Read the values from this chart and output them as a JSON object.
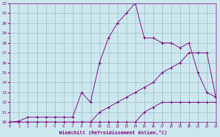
{
  "xlabel": "Windchill (Refroidissement éolien,°C)",
  "bg_color": "#cce8ee",
  "line_color": "#800080",
  "grid_color": "#99b8c8",
  "xmin": 0,
  "xmax": 23,
  "ymin": 10,
  "ymax": 22,
  "line1_x": [
    0,
    1,
    2,
    3,
    4,
    5,
    6,
    7,
    8,
    9,
    10,
    11,
    12,
    13,
    14,
    15,
    16,
    17,
    18,
    19,
    20,
    21,
    22,
    23
  ],
  "line1_y": [
    10,
    10,
    10,
    10,
    10,
    10,
    10,
    10,
    10,
    10,
    10,
    10,
    10,
    10,
    10,
    11,
    11.5,
    12,
    12,
    12,
    12,
    12,
    12,
    12
  ],
  "line2_x": [
    0,
    1,
    2,
    3,
    4,
    5,
    6,
    7,
    8,
    9,
    10,
    11,
    12,
    13,
    14,
    15,
    16,
    17,
    18,
    19,
    20,
    21,
    22,
    23
  ],
  "line2_y": [
    10,
    10,
    10,
    10,
    10,
    10,
    10,
    10,
    10,
    10,
    11,
    11.5,
    12,
    12.5,
    13,
    13.5,
    14,
    15,
    15.5,
    16,
    17,
    17,
    17,
    12.5
  ],
  "line3_x": [
    0,
    1,
    2,
    3,
    4,
    5,
    6,
    7,
    8,
    9,
    10,
    11,
    12,
    13,
    14,
    15,
    16,
    17,
    18,
    19,
    20,
    21,
    22,
    23
  ],
  "line3_y": [
    10,
    10.1,
    10.5,
    10.5,
    10.5,
    10.5,
    10.5,
    10.5,
    13,
    12,
    16,
    18.5,
    20,
    21,
    22,
    18.5,
    18.5,
    18,
    18,
    17.5,
    18,
    15,
    13,
    12.5
  ]
}
